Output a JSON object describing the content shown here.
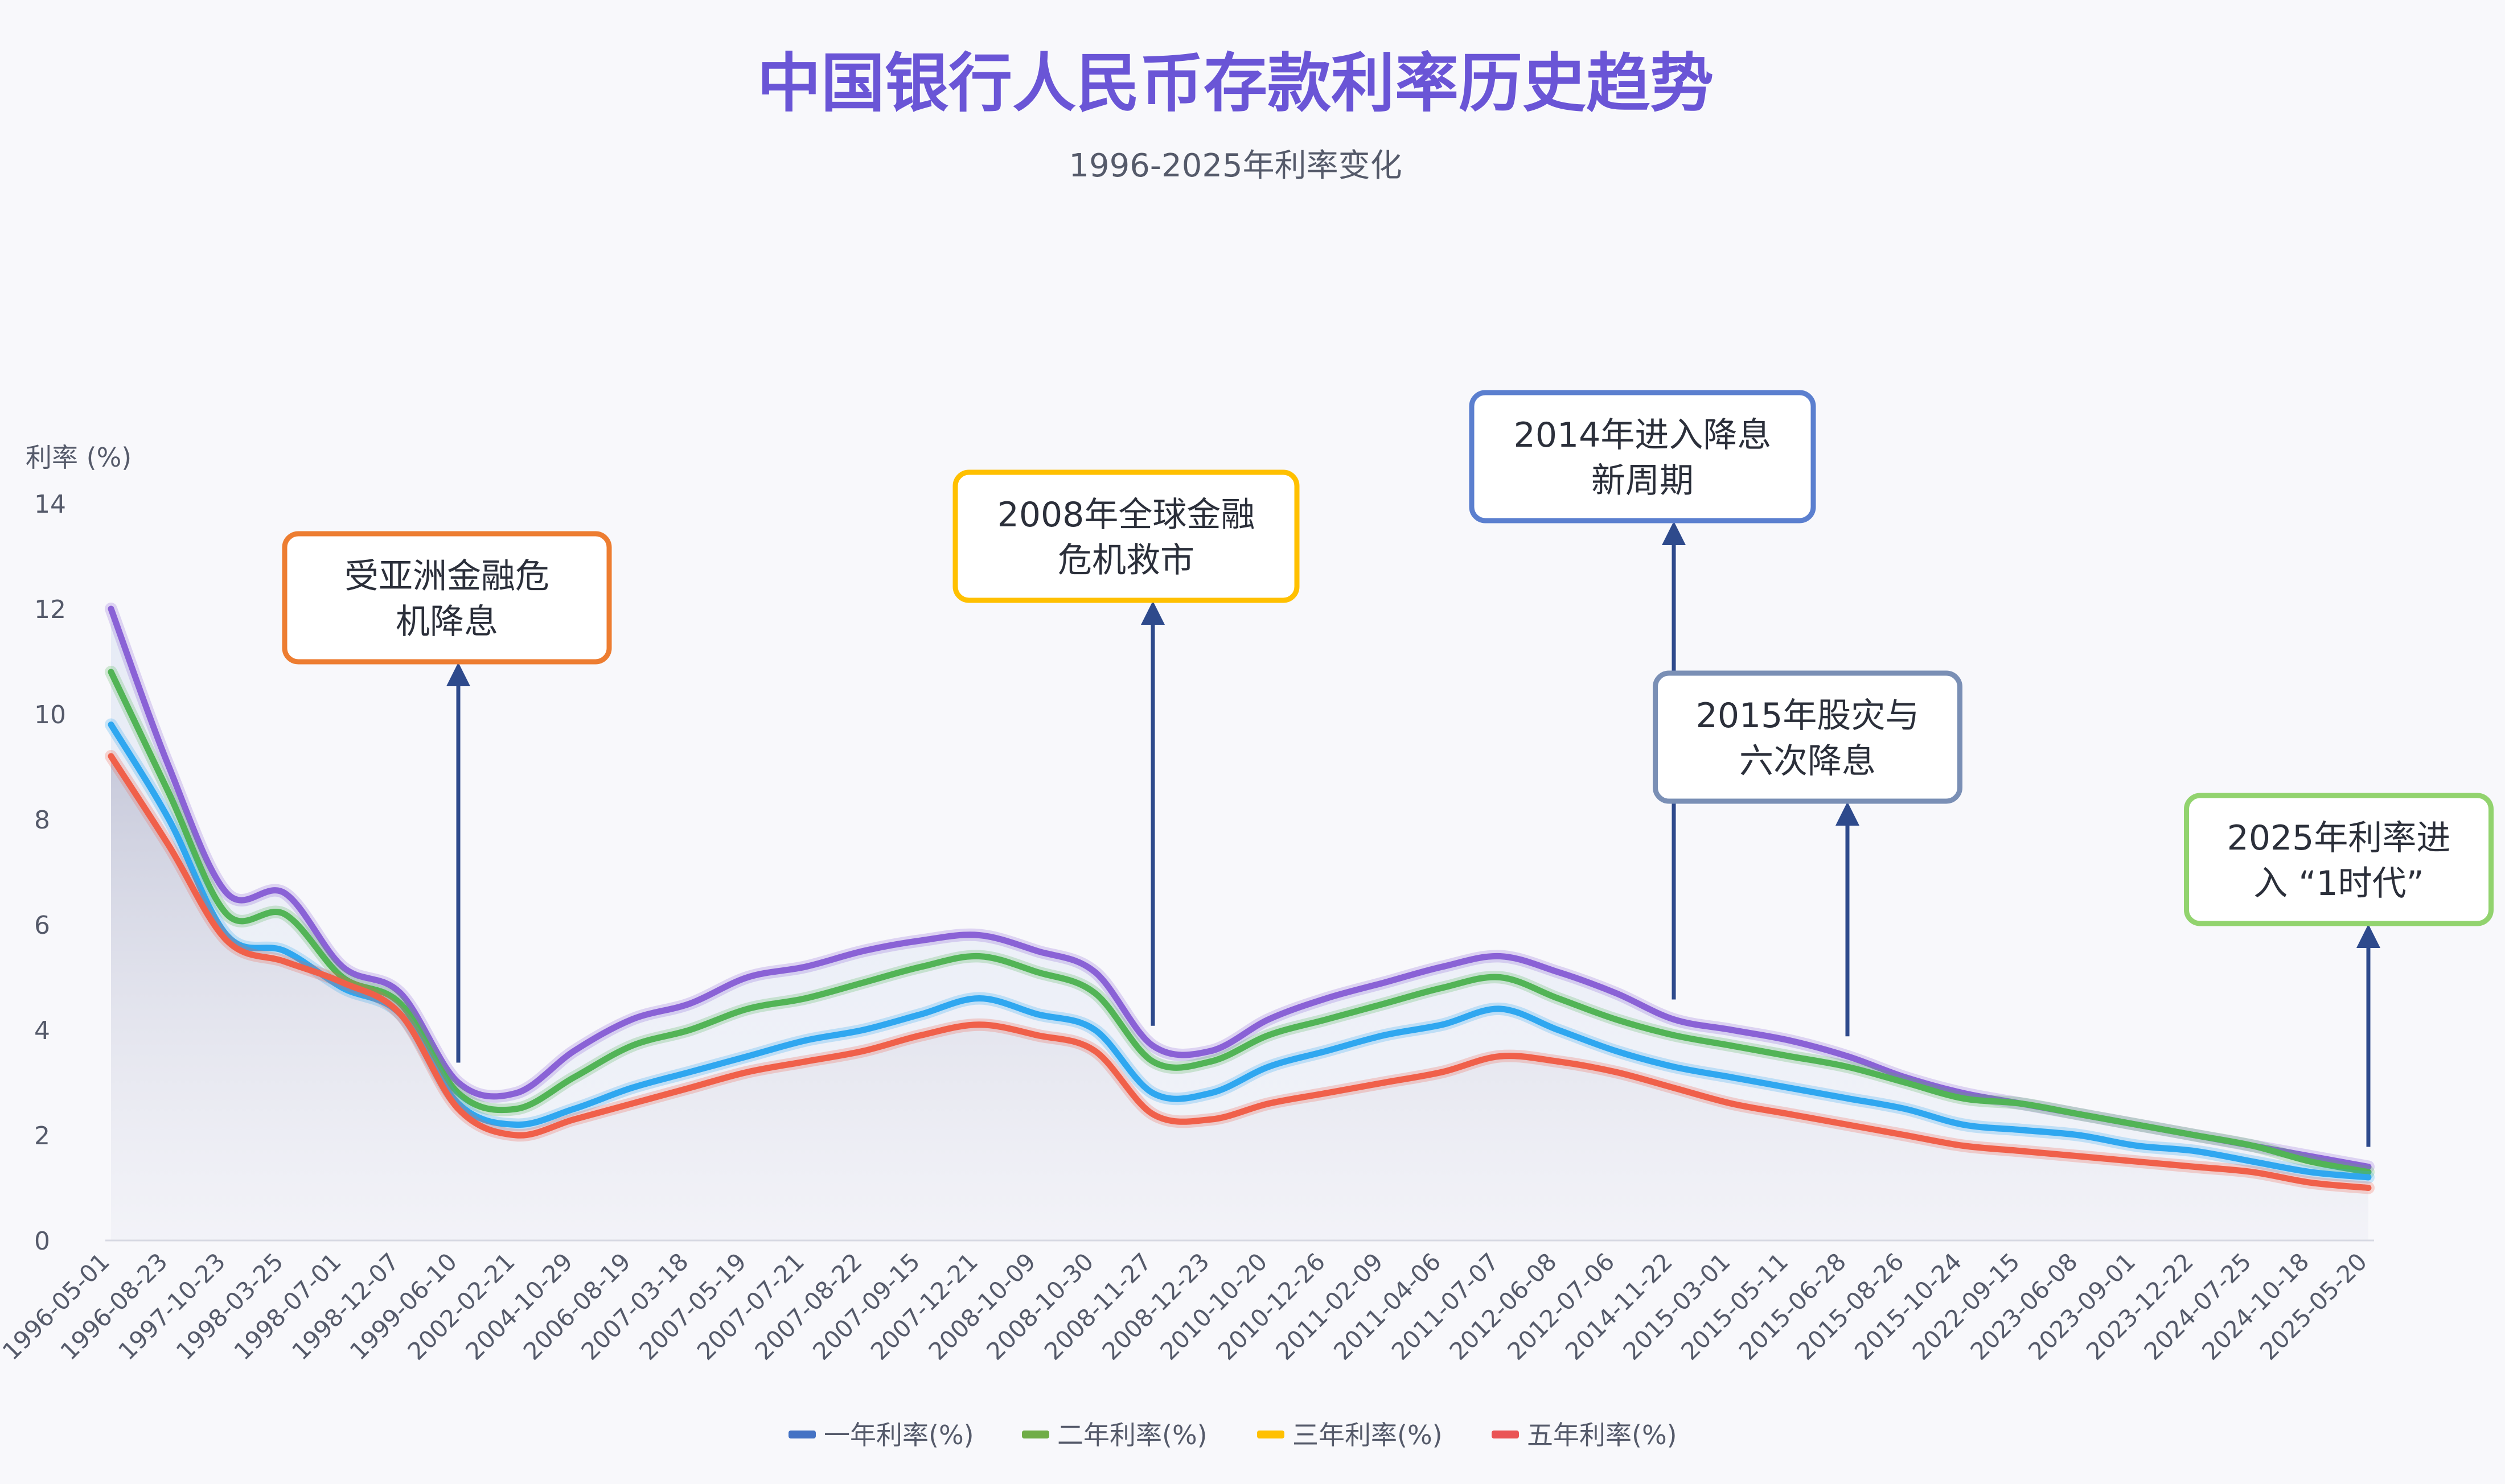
{
  "chart_data": {
    "type": "line",
    "title": "中国银行人民币存款利率历史趋势",
    "subtitle": "1996-2025年利率变化",
    "ylabel": "利率 (%)",
    "xlabel": "",
    "ylim": [
      0,
      14
    ],
    "yticks": [
      0,
      2,
      4,
      6,
      8,
      10,
      12,
      14
    ],
    "grid": false,
    "legend_position": "bottom",
    "categories": [
      "1996-05-01",
      "1996-08-23",
      "1997-10-23",
      "1998-03-25",
      "1998-07-01",
      "1998-12-07",
      "1999-06-10",
      "2002-02-21",
      "2004-10-29",
      "2006-08-19",
      "2007-03-18",
      "2007-05-19",
      "2007-07-21",
      "2007-08-22",
      "2007-09-15",
      "2007-12-21",
      "2008-10-09",
      "2008-10-30",
      "2008-11-27",
      "2008-12-23",
      "2010-10-20",
      "2010-12-26",
      "2011-02-09",
      "2011-04-06",
      "2011-07-07",
      "2012-06-08",
      "2012-07-06",
      "2014-11-22",
      "2015-03-01",
      "2015-05-11",
      "2015-06-28",
      "2015-08-26",
      "2015-10-24",
      "2022-09-15",
      "2023-06-08",
      "2023-09-01",
      "2023-12-22",
      "2024-07-25",
      "2024-10-18",
      "2025-05-20"
    ],
    "series": [
      {
        "name": "一年利率(%)",
        "color": "#4472c4",
        "values": [
          9.8,
          8.0,
          5.8,
          5.5,
          4.8,
          4.3,
          2.6,
          2.2,
          2.5,
          2.9,
          3.2,
          3.5,
          3.8,
          4.0,
          4.3,
          4.6,
          4.3,
          4.0,
          2.8,
          2.8,
          3.3,
          3.6,
          3.9,
          4.1,
          4.4,
          4.0,
          3.6,
          3.3,
          3.1,
          2.9,
          2.7,
          2.5,
          2.2,
          2.1,
          2.0,
          1.8,
          1.7,
          1.5,
          1.3,
          1.2
        ]
      },
      {
        "name": "二年利率(%)",
        "color": "#70ad47",
        "values": [
          10.8,
          8.5,
          6.2,
          6.2,
          5.0,
          4.5,
          2.8,
          2.5,
          3.1,
          3.7,
          4.0,
          4.4,
          4.6,
          4.9,
          5.2,
          5.4,
          5.1,
          4.7,
          3.4,
          3.4,
          3.9,
          4.2,
          4.5,
          4.8,
          5.0,
          4.6,
          4.2,
          3.9,
          3.7,
          3.5,
          3.3,
          3.0,
          2.7,
          2.6,
          2.4,
          2.2,
          2.0,
          1.8,
          1.5,
          1.3
        ]
      },
      {
        "name": "三年利率(%)",
        "color": "#ffc000",
        "values": [
          12.0,
          9.0,
          6.6,
          6.6,
          5.2,
          4.7,
          3.0,
          2.8,
          3.6,
          4.2,
          4.5,
          5.0,
          5.2,
          5.5,
          5.7,
          5.8,
          5.5,
          5.1,
          3.7,
          3.6,
          4.2,
          4.6,
          4.9,
          5.2,
          5.4,
          5.1,
          4.7,
          4.2,
          4.0,
          3.8,
          3.5,
          3.1,
          2.8,
          2.6,
          2.4,
          2.2,
          2.0,
          1.8,
          1.6,
          1.4
        ]
      },
      {
        "name": "五年利率(%)",
        "color": "#ea5455",
        "values": [
          9.2,
          7.5,
          5.7,
          5.3,
          4.9,
          4.3,
          2.5,
          2.0,
          2.3,
          2.6,
          2.9,
          3.2,
          3.4,
          3.6,
          3.9,
          4.1,
          3.9,
          3.6,
          2.4,
          2.3,
          2.6,
          2.8,
          3.0,
          3.2,
          3.5,
          3.4,
          3.2,
          2.9,
          2.6,
          2.4,
          2.2,
          2.0,
          1.8,
          1.7,
          1.6,
          1.5,
          1.4,
          1.3,
          1.1,
          1.0
        ]
      }
    ],
    "annotations": [
      {
        "text_lines": [
          "受亚洲金融危",
          "机降息"
        ],
        "at_category": "1999-06-10",
        "color": "#ed7d31"
      },
      {
        "text_lines": [
          "2008年全球金融",
          "危机救市"
        ],
        "at_category": "2008-11-27",
        "color": "#ffc000"
      },
      {
        "text_lines": [
          "2014年进入降息",
          "新周期"
        ],
        "at_category": "2014-11-22",
        "color": "#5b7fcf"
      },
      {
        "text_lines": [
          "2015年股灾与",
          "六次降息"
        ],
        "at_category": "2015-06-28",
        "color": "#7a8fb5"
      },
      {
        "text_lines": [
          "2025年利率进",
          "入 “1时代”"
        ],
        "at_category": "2025-05-20",
        "color": "#92d36e"
      }
    ]
  }
}
